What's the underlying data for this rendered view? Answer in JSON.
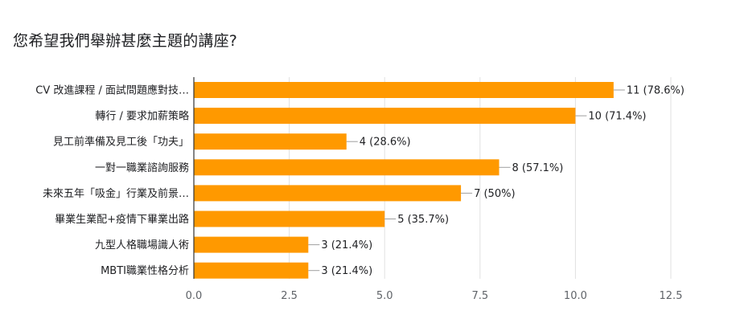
{
  "page": {
    "title": "您希望我們舉辦甚麼主題的講座?"
  },
  "chart_data": {
    "type": "bar",
    "orientation": "horizontal",
    "title": "您希望我們舉辦甚麼主題的講座?",
    "categories": [
      "CV 改進課程 / 面試問題應對技…",
      "轉行 / 要求加薪策略",
      "見工前準備及見工後「功夫」",
      "一對一職業諮詢服務",
      "未來五年「吸金」行業及前景…",
      "畢業生業配+疫情下畢業出路",
      "九型人格職場識人術",
      "MBTI職業性格分析"
    ],
    "values": [
      11,
      10,
      4,
      8,
      7,
      5,
      3,
      3
    ],
    "data_labels": [
      "11 (78.6%)",
      "10 (71.4%)",
      "4 (28.6%)",
      "8 (57.1%)",
      "7 (50%)",
      "5 (35.7%)",
      "3 (21.4%)",
      "3 (21.4%)"
    ],
    "xlim": [
      0,
      12.5
    ],
    "xticks": [
      0,
      2.5,
      5,
      7.5,
      10,
      12.5
    ],
    "xtick_labels": [
      "0.0",
      "2.5",
      "5.0",
      "7.5",
      "10.0",
      "12.5"
    ],
    "grid": true,
    "bar_color": "#ff9900",
    "axis_color": "#333333",
    "grid_color": "#e0e0e0"
  }
}
